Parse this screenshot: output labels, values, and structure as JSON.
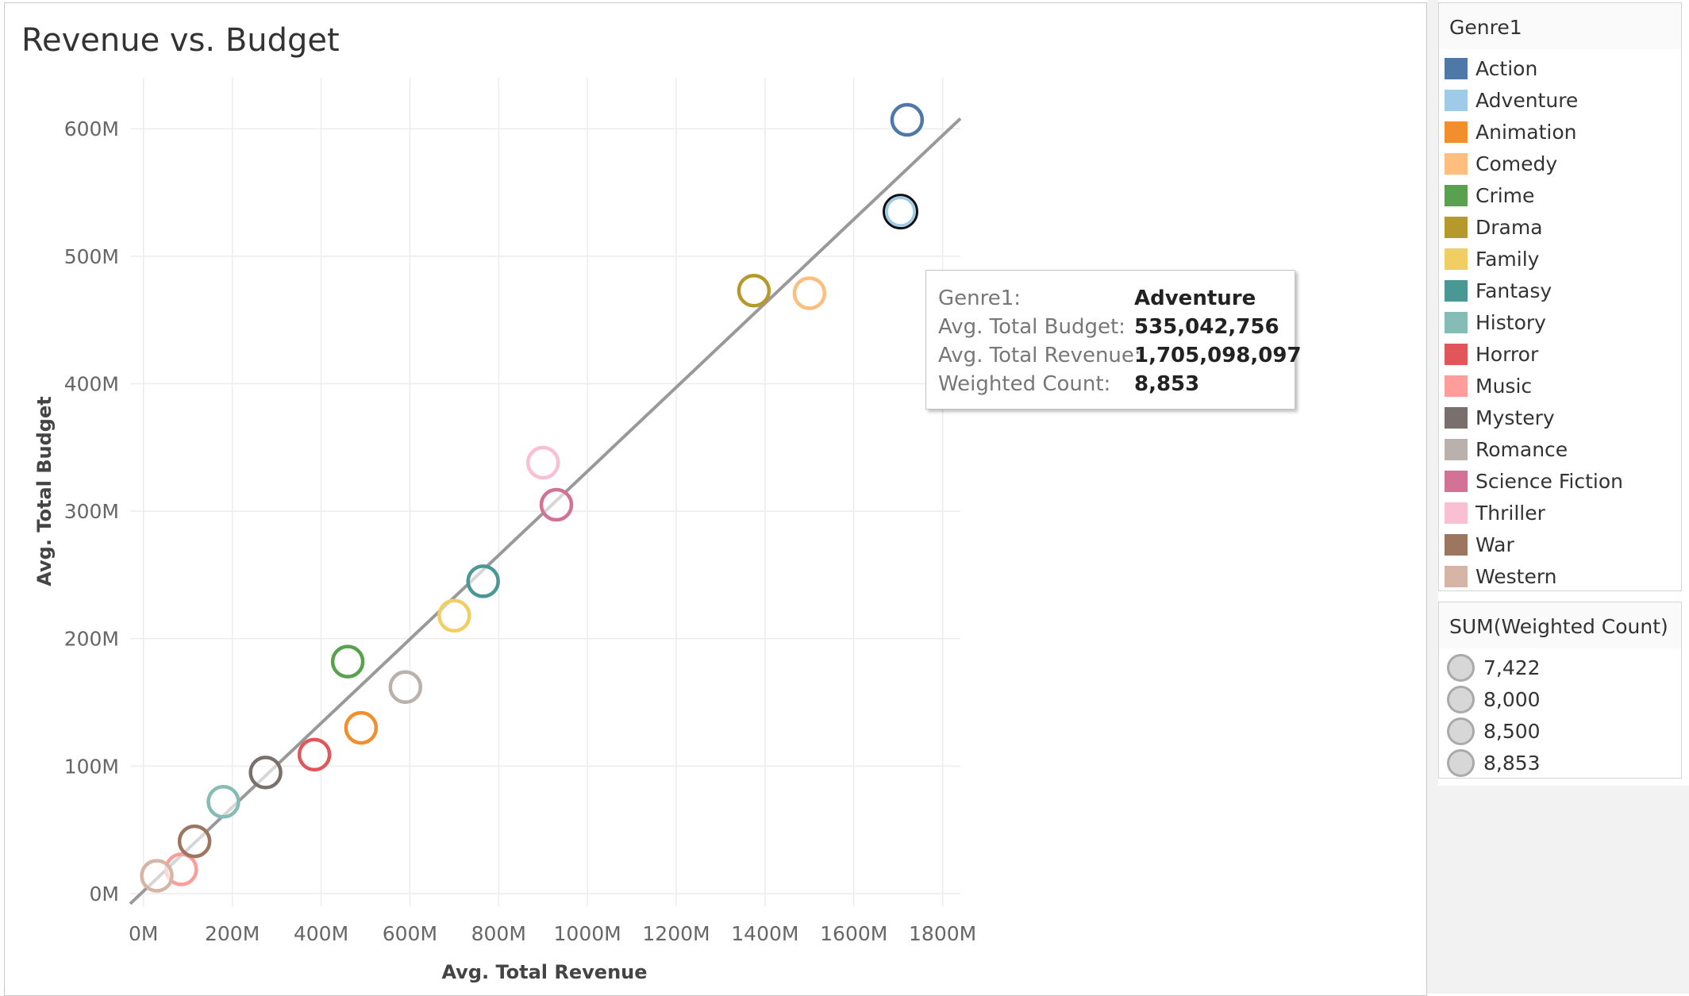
{
  "chart_data": {
    "type": "scatter",
    "title": "Revenue vs. Budget",
    "xlabel": "Avg. Total Revenue",
    "ylabel": "Avg. Total Budget",
    "xlim": [
      -30,
      1840
    ],
    "ylim": [
      -10,
      640
    ],
    "x_ticks": [
      0,
      200,
      400,
      600,
      800,
      1000,
      1200,
      1400,
      1600,
      1800
    ],
    "x_tick_labels": [
      "0M",
      "200M",
      "400M",
      "600M",
      "800M",
      "1000M",
      "1200M",
      "1400M",
      "1600M",
      "1800M"
    ],
    "y_ticks": [
      0,
      100,
      200,
      300,
      400,
      500,
      600
    ],
    "y_tick_labels": [
      "0M",
      "100M",
      "200M",
      "300M",
      "400M",
      "500M",
      "600M"
    ],
    "grid": true,
    "trend_line": {
      "x": [
        -30,
        1840
      ],
      "y": [
        -8,
        608
      ]
    },
    "points": [
      {
        "genre": "Action",
        "x": 1720,
        "y": 607
      },
      {
        "genre": "Adventure",
        "x": 1705,
        "y": 535
      },
      {
        "genre": "Animation",
        "x": 490,
        "y": 130
      },
      {
        "genre": "Comedy",
        "x": 1500,
        "y": 471
      },
      {
        "genre": "Crime",
        "x": 460,
        "y": 182
      },
      {
        "genre": "Drama",
        "x": 1375,
        "y": 473
      },
      {
        "genre": "Family",
        "x": 700,
        "y": 218
      },
      {
        "genre": "Fantasy",
        "x": 765,
        "y": 245
      },
      {
        "genre": "History",
        "x": 180,
        "y": 72
      },
      {
        "genre": "Horror",
        "x": 385,
        "y": 109
      },
      {
        "genre": "Music",
        "x": 85,
        "y": 19
      },
      {
        "genre": "Mystery",
        "x": 275,
        "y": 95
      },
      {
        "genre": "Romance",
        "x": 590,
        "y": 162
      },
      {
        "genre": "Science Fiction",
        "x": 930,
        "y": 305
      },
      {
        "genre": "Thriller",
        "x": 900,
        "y": 338
      },
      {
        "genre": "War",
        "x": 115,
        "y": 41
      },
      {
        "genre": "Western",
        "x": 30,
        "y": 14
      }
    ],
    "highlighted": "Adventure",
    "legend_placement": "right"
  },
  "legend": {
    "title": "Genre1",
    "items": [
      {
        "label": "Action",
        "color": "#4e79a7"
      },
      {
        "label": "Adventure",
        "color": "#a0cbe8"
      },
      {
        "label": "Animation",
        "color": "#f28e2b"
      },
      {
        "label": "Comedy",
        "color": "#ffbe7d"
      },
      {
        "label": "Crime",
        "color": "#59a14f"
      },
      {
        "label": "Drama",
        "color": "#b6992d"
      },
      {
        "label": "Family",
        "color": "#f1ce63"
      },
      {
        "label": "Fantasy",
        "color": "#499894"
      },
      {
        "label": "History",
        "color": "#86bcb6"
      },
      {
        "label": "Horror",
        "color": "#e15759"
      },
      {
        "label": "Music",
        "color": "#ff9d9a"
      },
      {
        "label": "Mystery",
        "color": "#79706e"
      },
      {
        "label": "Romance",
        "color": "#bab0ac"
      },
      {
        "label": "Science Fiction",
        "color": "#d37295"
      },
      {
        "label": "Thriller",
        "color": "#fabfd2"
      },
      {
        "label": "War",
        "color": "#9d7660"
      },
      {
        "label": "Western",
        "color": "#d7b5a6"
      }
    ]
  },
  "size_legend": {
    "title": "SUM(Weighted Count)",
    "items": [
      "7,422",
      "8,000",
      "8,500",
      "8,853"
    ]
  },
  "tooltip": {
    "rows": [
      {
        "key": "Genre1:",
        "value": "Adventure"
      },
      {
        "key": "Avg. Total Budget:",
        "value": "535,042,756"
      },
      {
        "key": "Avg. Total Revenue:",
        "value": "1,705,098,097"
      },
      {
        "key": "Weighted Count:",
        "value": "8,853"
      }
    ]
  }
}
